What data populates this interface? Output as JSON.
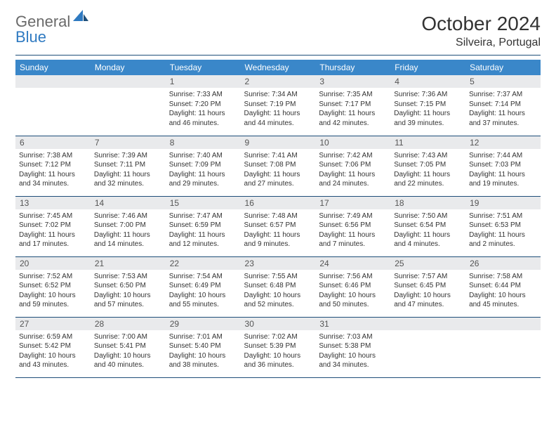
{
  "brand": {
    "part1": "General",
    "part2": "Blue"
  },
  "header": {
    "title": "October 2024",
    "location": "Silveira, Portugal"
  },
  "styling": {
    "header_bg": "#3a87c9",
    "header_text": "#ffffff",
    "daynum_bg": "#e9eaec",
    "border_color": "#1e4e79",
    "title_fontsize": 28,
    "location_fontsize": 16,
    "dayhead_fontsize": 12,
    "body_fontsize": 10
  },
  "weekdays": [
    "Sunday",
    "Monday",
    "Tuesday",
    "Wednesday",
    "Thursday",
    "Friday",
    "Saturday"
  ],
  "weeks": [
    [
      {
        "blank": true
      },
      {
        "blank": true
      },
      {
        "n": "1",
        "sunrise": "Sunrise: 7:33 AM",
        "sunset": "Sunset: 7:20 PM",
        "daylight": "Daylight: 11 hours and 46 minutes."
      },
      {
        "n": "2",
        "sunrise": "Sunrise: 7:34 AM",
        "sunset": "Sunset: 7:19 PM",
        "daylight": "Daylight: 11 hours and 44 minutes."
      },
      {
        "n": "3",
        "sunrise": "Sunrise: 7:35 AM",
        "sunset": "Sunset: 7:17 PM",
        "daylight": "Daylight: 11 hours and 42 minutes."
      },
      {
        "n": "4",
        "sunrise": "Sunrise: 7:36 AM",
        "sunset": "Sunset: 7:15 PM",
        "daylight": "Daylight: 11 hours and 39 minutes."
      },
      {
        "n": "5",
        "sunrise": "Sunrise: 7:37 AM",
        "sunset": "Sunset: 7:14 PM",
        "daylight": "Daylight: 11 hours and 37 minutes."
      }
    ],
    [
      {
        "n": "6",
        "sunrise": "Sunrise: 7:38 AM",
        "sunset": "Sunset: 7:12 PM",
        "daylight": "Daylight: 11 hours and 34 minutes."
      },
      {
        "n": "7",
        "sunrise": "Sunrise: 7:39 AM",
        "sunset": "Sunset: 7:11 PM",
        "daylight": "Daylight: 11 hours and 32 minutes."
      },
      {
        "n": "8",
        "sunrise": "Sunrise: 7:40 AM",
        "sunset": "Sunset: 7:09 PM",
        "daylight": "Daylight: 11 hours and 29 minutes."
      },
      {
        "n": "9",
        "sunrise": "Sunrise: 7:41 AM",
        "sunset": "Sunset: 7:08 PM",
        "daylight": "Daylight: 11 hours and 27 minutes."
      },
      {
        "n": "10",
        "sunrise": "Sunrise: 7:42 AM",
        "sunset": "Sunset: 7:06 PM",
        "daylight": "Daylight: 11 hours and 24 minutes."
      },
      {
        "n": "11",
        "sunrise": "Sunrise: 7:43 AM",
        "sunset": "Sunset: 7:05 PM",
        "daylight": "Daylight: 11 hours and 22 minutes."
      },
      {
        "n": "12",
        "sunrise": "Sunrise: 7:44 AM",
        "sunset": "Sunset: 7:03 PM",
        "daylight": "Daylight: 11 hours and 19 minutes."
      }
    ],
    [
      {
        "n": "13",
        "sunrise": "Sunrise: 7:45 AM",
        "sunset": "Sunset: 7:02 PM",
        "daylight": "Daylight: 11 hours and 17 minutes."
      },
      {
        "n": "14",
        "sunrise": "Sunrise: 7:46 AM",
        "sunset": "Sunset: 7:00 PM",
        "daylight": "Daylight: 11 hours and 14 minutes."
      },
      {
        "n": "15",
        "sunrise": "Sunrise: 7:47 AM",
        "sunset": "Sunset: 6:59 PM",
        "daylight": "Daylight: 11 hours and 12 minutes."
      },
      {
        "n": "16",
        "sunrise": "Sunrise: 7:48 AM",
        "sunset": "Sunset: 6:57 PM",
        "daylight": "Daylight: 11 hours and 9 minutes."
      },
      {
        "n": "17",
        "sunrise": "Sunrise: 7:49 AM",
        "sunset": "Sunset: 6:56 PM",
        "daylight": "Daylight: 11 hours and 7 minutes."
      },
      {
        "n": "18",
        "sunrise": "Sunrise: 7:50 AM",
        "sunset": "Sunset: 6:54 PM",
        "daylight": "Daylight: 11 hours and 4 minutes."
      },
      {
        "n": "19",
        "sunrise": "Sunrise: 7:51 AM",
        "sunset": "Sunset: 6:53 PM",
        "daylight": "Daylight: 11 hours and 2 minutes."
      }
    ],
    [
      {
        "n": "20",
        "sunrise": "Sunrise: 7:52 AM",
        "sunset": "Sunset: 6:52 PM",
        "daylight": "Daylight: 10 hours and 59 minutes."
      },
      {
        "n": "21",
        "sunrise": "Sunrise: 7:53 AM",
        "sunset": "Sunset: 6:50 PM",
        "daylight": "Daylight: 10 hours and 57 minutes."
      },
      {
        "n": "22",
        "sunrise": "Sunrise: 7:54 AM",
        "sunset": "Sunset: 6:49 PM",
        "daylight": "Daylight: 10 hours and 55 minutes."
      },
      {
        "n": "23",
        "sunrise": "Sunrise: 7:55 AM",
        "sunset": "Sunset: 6:48 PM",
        "daylight": "Daylight: 10 hours and 52 minutes."
      },
      {
        "n": "24",
        "sunrise": "Sunrise: 7:56 AM",
        "sunset": "Sunset: 6:46 PM",
        "daylight": "Daylight: 10 hours and 50 minutes."
      },
      {
        "n": "25",
        "sunrise": "Sunrise: 7:57 AM",
        "sunset": "Sunset: 6:45 PM",
        "daylight": "Daylight: 10 hours and 47 minutes."
      },
      {
        "n": "26",
        "sunrise": "Sunrise: 7:58 AM",
        "sunset": "Sunset: 6:44 PM",
        "daylight": "Daylight: 10 hours and 45 minutes."
      }
    ],
    [
      {
        "n": "27",
        "sunrise": "Sunrise: 6:59 AM",
        "sunset": "Sunset: 5:42 PM",
        "daylight": "Daylight: 10 hours and 43 minutes."
      },
      {
        "n": "28",
        "sunrise": "Sunrise: 7:00 AM",
        "sunset": "Sunset: 5:41 PM",
        "daylight": "Daylight: 10 hours and 40 minutes."
      },
      {
        "n": "29",
        "sunrise": "Sunrise: 7:01 AM",
        "sunset": "Sunset: 5:40 PM",
        "daylight": "Daylight: 10 hours and 38 minutes."
      },
      {
        "n": "30",
        "sunrise": "Sunrise: 7:02 AM",
        "sunset": "Sunset: 5:39 PM",
        "daylight": "Daylight: 10 hours and 36 minutes."
      },
      {
        "n": "31",
        "sunrise": "Sunrise: 7:03 AM",
        "sunset": "Sunset: 5:38 PM",
        "daylight": "Daylight: 10 hours and 34 minutes."
      },
      {
        "blank": true
      },
      {
        "blank": true
      }
    ]
  ]
}
